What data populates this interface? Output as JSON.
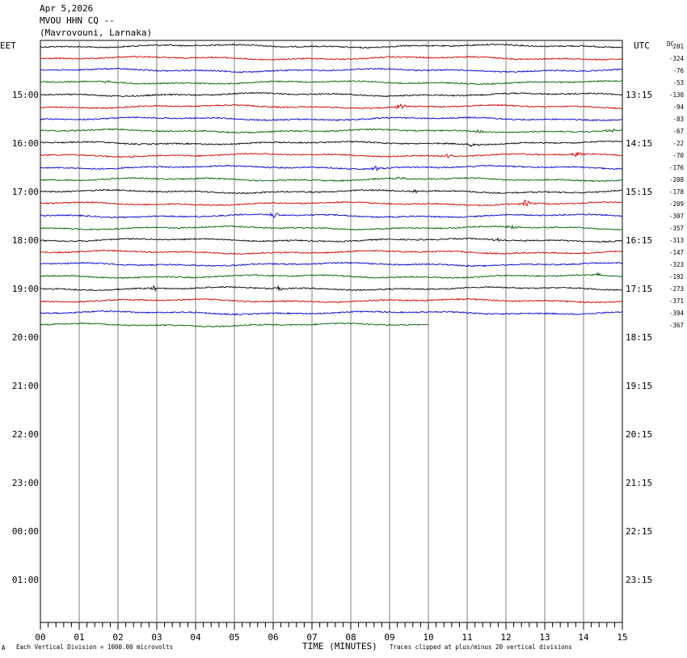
{
  "header": {
    "date": "Apr 5,2026",
    "station": "MVOU HHN CQ --",
    "location": "(Mavrovouni, Larnaka)"
  },
  "left_timezone": "EET",
  "right_timezone": "UTC",
  "dc_label": "DC",
  "footer": {
    "scale": "Each Vertical Division = 1000.00 microvolts",
    "xlabel": "TIME (MINUTES)",
    "clip_note": "Traces clipped at plus/minus 20 vertical divisions",
    "mark": "A"
  },
  "chart_data": {
    "type": "line",
    "title": "MVOU HHN CQ --",
    "xlabel": "TIME (MINUTES)",
    "x_ticks": [
      "00",
      "01",
      "02",
      "03",
      "04",
      "05",
      "06",
      "07",
      "08",
      "09",
      "10",
      "11",
      "12",
      "13",
      "14",
      "15"
    ],
    "xlim": [
      0,
      15
    ],
    "left_hours": [
      "15:00",
      "16:00",
      "17:00",
      "18:00",
      "19:00",
      "20:00",
      "21:00",
      "22:00",
      "23:00",
      "00:00",
      "01:00"
    ],
    "right_hours": [
      "13:15",
      "14:15",
      "15:15",
      "16:15",
      "17:15",
      "18:15",
      "19:15",
      "20:15",
      "21:15",
      "22:15",
      "23:15"
    ],
    "trace_colors": [
      "#000000",
      "#d00000",
      "#0000d0",
      "#006000"
    ],
    "dc_offsets": [
      201,
      -324,
      -76,
      -53,
      -130,
      -94,
      -83,
      -67,
      -22,
      -70,
      -176,
      -208,
      -178,
      -209,
      -307,
      -357,
      -313,
      -147,
      -323,
      -192,
      -273,
      -371,
      -394,
      -367
    ],
    "last_trace_end_minute": 10.0,
    "grid": true
  }
}
